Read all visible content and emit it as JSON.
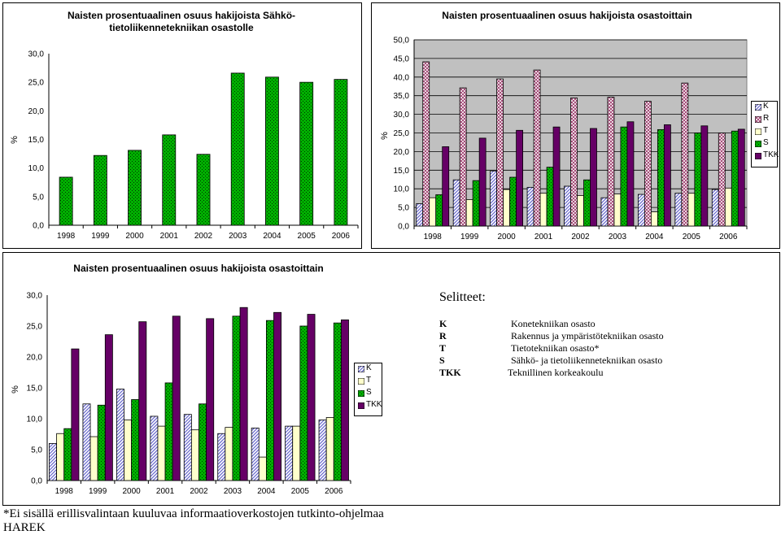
{
  "series_defs": {
    "K": {
      "name": "K",
      "fill": "url(#pK)"
    },
    "R": {
      "name": "R",
      "fill": "url(#pR)"
    },
    "T": {
      "name": "T",
      "fill": "#ffffcc"
    },
    "S": {
      "name": "S",
      "fill": "url(#pS)"
    },
    "TKK": {
      "name": "TKK",
      "fill": "#660066"
    }
  },
  "charts": {
    "c1": {
      "title": "Naisten prosentuaalinen osuus hakijoista Sähkö-tietoliikennetekniikan osastolle",
      "ylabel": "%"
    },
    "c2": {
      "title": "Naisten prosentuaalinen osuus hakijoista osastoittain",
      "ylabel": "%"
    },
    "c3": {
      "title": "Naisten prosentuaalinen osuus hakijoista osastoittain",
      "ylabel": "%"
    }
  },
  "chart_data": [
    {
      "type": "bar",
      "title": "Naisten prosentuaalinen osuus hakijoista Sähkö-tietoliikennetekniikan osastolle",
      "ylabel": "%",
      "categories": [
        "1998",
        "1999",
        "2000",
        "2001",
        "2002",
        "2003",
        "2004",
        "2005",
        "2006"
      ],
      "ylim": [
        0,
        30
      ],
      "ytick_step": 5,
      "grid": false,
      "plot_background": "#ffffff",
      "series": [
        {
          "key": "S",
          "values": [
            8.4,
            12.2,
            13.1,
            15.8,
            12.4,
            26.6,
            25.9,
            25.0,
            25.5
          ]
        }
      ]
    },
    {
      "type": "bar",
      "title": "Naisten prosentuaalinen osuus hakijoista osastoittain",
      "ylabel": "%",
      "categories": [
        "1998",
        "1999",
        "2000",
        "2001",
        "2002",
        "2003",
        "2004",
        "2005",
        "2006"
      ],
      "ylim": [
        0,
        50
      ],
      "ytick_step": 5,
      "grid": true,
      "plot_background": "#c0c0c0",
      "legend": "right",
      "series": [
        {
          "key": "K",
          "name": "K",
          "values": [
            6.0,
            12.4,
            14.8,
            10.4,
            10.7,
            7.6,
            8.5,
            8.8,
            9.8
          ]
        },
        {
          "key": "R",
          "name": "R",
          "values": [
            44.1,
            37.1,
            39.5,
            41.9,
            34.4,
            34.6,
            33.5,
            38.4,
            25.0
          ]
        },
        {
          "key": "T",
          "name": "T",
          "values": [
            7.6,
            7.1,
            9.8,
            8.8,
            8.2,
            8.6,
            3.8,
            8.8,
            10.2
          ]
        },
        {
          "key": "S",
          "name": "S",
          "values": [
            8.4,
            12.2,
            13.1,
            15.8,
            12.4,
            26.6,
            25.9,
            25.0,
            25.5
          ]
        },
        {
          "key": "TKK",
          "name": "TKK",
          "values": [
            21.3,
            23.6,
            25.7,
            26.6,
            26.2,
            28.0,
            27.2,
            26.9,
            26.0
          ]
        }
      ]
    },
    {
      "type": "bar",
      "title": "Naisten prosentuaalinen osuus hakijoista osastoittain",
      "ylabel": "%",
      "categories": [
        "1998",
        "1999",
        "2000",
        "2001",
        "2002",
        "2003",
        "2004",
        "2005",
        "2006"
      ],
      "ylim": [
        0,
        30
      ],
      "ytick_step": 5,
      "grid": false,
      "plot_background": "#ffffff",
      "legend": "right",
      "series": [
        {
          "key": "K",
          "name": "K",
          "values": [
            6.0,
            12.4,
            14.8,
            10.4,
            10.7,
            7.6,
            8.5,
            8.8,
            9.8
          ]
        },
        {
          "key": "T",
          "name": "T",
          "values": [
            7.6,
            7.1,
            9.8,
            8.8,
            8.2,
            8.6,
            3.8,
            8.8,
            10.2
          ]
        },
        {
          "key": "S",
          "name": "S",
          "values": [
            8.4,
            12.2,
            13.1,
            15.8,
            12.4,
            26.6,
            25.9,
            25.0,
            25.5
          ]
        },
        {
          "key": "TKK",
          "name": "TKK",
          "values": [
            21.3,
            23.6,
            25.7,
            26.6,
            26.2,
            28.0,
            27.2,
            26.9,
            26.0
          ]
        }
      ]
    }
  ],
  "legend2": {
    "k": "K",
    "r": "R",
    "t": "T",
    "s": "S",
    "tkk": "TKK"
  },
  "legend3": {
    "k": "K",
    "t": "T",
    "s": "S",
    "tkk": "TKK"
  },
  "explanation": {
    "heading": "Selitteet:",
    "rows": [
      {
        "code": "K",
        "desc": "Konetekniikan osasto"
      },
      {
        "code": "R",
        "desc": "Rakennus ja ympäristötekniikan osasto"
      },
      {
        "code": "T",
        "desc": "Tietotekniikan osasto*"
      },
      {
        "code": "S",
        "desc": "Sähkö- ja tietoliikennetekniikan osasto"
      },
      {
        "code": "TKK",
        "desc": "Teknillinen korkeakoulu"
      }
    ]
  },
  "footnote": {
    "line1": "*Ei sisällä erillisvalintaan kuuluvaa informaatioverkostojen tutkinto-ohjelmaa",
    "line2": "HAREK"
  }
}
